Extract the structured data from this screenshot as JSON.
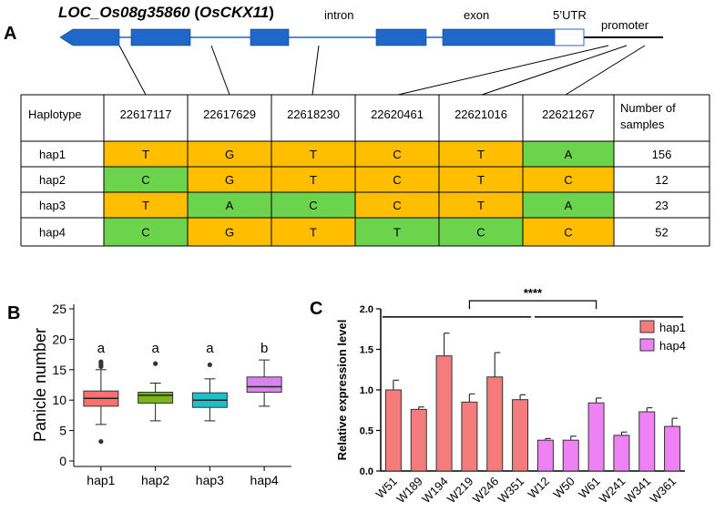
{
  "panel_a": {
    "label": "A",
    "gene_title_italic": "LOC_Os08g35860",
    "gene_title_paren_open": " (",
    "gene_title_gene": "OsCKX11",
    "gene_title_paren_close": ")",
    "structure_labels": {
      "intron": "intron",
      "exon": "exon",
      "utr": "5’UTR",
      "promoter": "promoter"
    },
    "colors": {
      "exon": "#1f67c8",
      "line": "#1f67c8",
      "ref_allele": "#ffbf00",
      "alt_allele": "#6cd34c"
    },
    "table": {
      "headers": [
        "Haplotype",
        "22617117",
        "22617629",
        "22618230",
        "22620461",
        "22621016",
        "22621267",
        "Number of samples"
      ],
      "rows": [
        {
          "hap": "hap1",
          "alleles": [
            "T",
            "G",
            "T",
            "C",
            "T",
            "A"
          ],
          "highlight": [
            "ref",
            "ref",
            "ref",
            "ref",
            "ref",
            "alt"
          ],
          "count": "156"
        },
        {
          "hap": "hap2",
          "alleles": [
            "C",
            "G",
            "T",
            "C",
            "T",
            "C"
          ],
          "highlight": [
            "alt",
            "ref",
            "ref",
            "ref",
            "ref",
            "ref"
          ],
          "count": "12"
        },
        {
          "hap": "hap3",
          "alleles": [
            "T",
            "A",
            "C",
            "C",
            "T",
            "A"
          ],
          "highlight": [
            "ref",
            "alt",
            "alt",
            "ref",
            "ref",
            "alt"
          ],
          "count": "23"
        },
        {
          "hap": "hap4",
          "alleles": [
            "C",
            "G",
            "T",
            "T",
            "C",
            "C"
          ],
          "highlight": [
            "alt",
            "ref",
            "ref",
            "alt",
            "alt",
            "ref"
          ],
          "count": "52"
        }
      ]
    }
  },
  "chart_data": [
    {
      "panel": "B",
      "type": "boxplot",
      "title": "",
      "xlabel": "",
      "ylabel": "Panicle number",
      "ylim": [
        0,
        25
      ],
      "yticks": [
        0,
        5,
        10,
        15,
        20,
        25
      ],
      "categories": [
        "hap1",
        "hap2",
        "hap3",
        "hap4"
      ],
      "colors": [
        "#f87171",
        "#7cb518",
        "#1fbfc7",
        "#d884f0"
      ],
      "boxes": [
        {
          "whisker_low": 6,
          "q1": 9,
          "median": 10.3,
          "q3": 11.5,
          "whisker_high": 15,
          "outliers": [
            3.2,
            15.5,
            15.8,
            16.0,
            16.3
          ]
        },
        {
          "whisker_low": 6.6,
          "q1": 9.5,
          "median": 10.8,
          "q3": 11.3,
          "whisker_high": 12.8,
          "outliers": [
            16.0
          ]
        },
        {
          "whisker_low": 6.6,
          "q1": 8.8,
          "median": 10.0,
          "q3": 11.2,
          "whisker_high": 13.5,
          "outliers": [
            15.8
          ]
        },
        {
          "whisker_low": 9.0,
          "q1": 11.3,
          "median": 12.2,
          "q3": 13.8,
          "whisker_high": 16.6,
          "outliers": []
        }
      ],
      "significance_letters": [
        "a",
        "a",
        "a",
        "b"
      ]
    },
    {
      "panel": "C",
      "type": "bar",
      "title": "",
      "xlabel": "",
      "ylabel": "Relative expression  level",
      "ylim": [
        0,
        2.0
      ],
      "yticks": [
        "0.0",
        "0.5",
        "1.0",
        "1.5",
        "2.0"
      ],
      "categories": [
        "W51",
        "W189",
        "W194",
        "W219",
        "W246",
        "W351",
        "W12",
        "W50",
        "W61",
        "W241",
        "W341",
        "W361"
      ],
      "values": [
        1.0,
        0.76,
        1.42,
        0.85,
        1.16,
        0.88,
        0.38,
        0.38,
        0.84,
        0.44,
        0.73,
        0.55
      ],
      "errors": [
        0.12,
        0.03,
        0.28,
        0.1,
        0.3,
        0.06,
        0.02,
        0.05,
        0.06,
        0.04,
        0.05,
        0.1
      ],
      "groups": [
        "hap1",
        "hap1",
        "hap1",
        "hap1",
        "hap1",
        "hap1",
        "hap4",
        "hap4",
        "hap4",
        "hap4",
        "hap4",
        "hap4"
      ],
      "legend": [
        {
          "name": "hap1",
          "color": "#f47c7c"
        },
        {
          "name": "hap4",
          "color": "#ee82f5"
        }
      ],
      "legend_position": "top-right",
      "significance": "****"
    }
  ],
  "panel_labels": {
    "b": "B",
    "c": "C"
  }
}
